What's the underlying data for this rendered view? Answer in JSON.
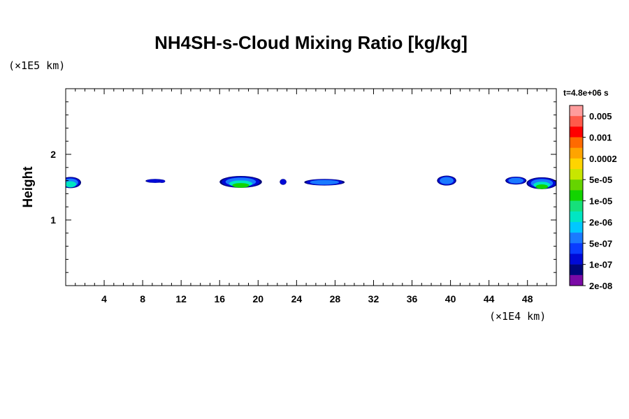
{
  "chart_data": {
    "type": "contour",
    "title": "NH4SH-s-Cloud Mixing Ratio [kg/kg]",
    "ylabel": "Height",
    "xlabel": "",
    "x_unit_label": "(×1E4 km)",
    "y_unit_label": "(×1E5 km)",
    "time_label": "t=4.8e+06 s",
    "xlim": [
      0,
      51
    ],
    "ylim": [
      0,
      3
    ],
    "x_ticks": [
      4,
      8,
      12,
      16,
      20,
      24,
      28,
      32,
      36,
      40,
      44,
      48
    ],
    "y_ticks": [
      1,
      2
    ],
    "x_minor_step": 1,
    "y_minor_step": 0.2,
    "colorbar": {
      "labels": [
        "0.005",
        "0.001",
        "0.0002",
        "5e-05",
        "1e-05",
        "2e-06",
        "5e-07",
        "1e-07",
        "2e-08"
      ],
      "colors": [
        "#ff9c9c",
        "#ff5a4a",
        "#ff0000",
        "#ff6a00",
        "#ffa400",
        "#ffd400",
        "#c8e600",
        "#66d400",
        "#12d400",
        "#16e07a",
        "#00e6c2",
        "#00c8ff",
        "#1a7aff",
        "#0a3cff",
        "#000ad6",
        "#00067a",
        "#7a0aa6"
      ]
    },
    "cloud_patches": [
      {
        "x_center": 0.5,
        "y_center": 1.57,
        "x_halfwidth": 1.1,
        "y_halfheight": 0.085,
        "max_level": "2e-06"
      },
      {
        "x_center": 9.3,
        "y_center": 1.595,
        "x_halfwidth": 1.0,
        "y_halfheight": 0.03,
        "max_level": "1e-07"
      },
      {
        "x_center": 10.0,
        "y_center": 1.59,
        "x_halfwidth": 0.35,
        "y_halfheight": 0.025,
        "max_level": "1e-07"
      },
      {
        "x_center": 18.2,
        "y_center": 1.58,
        "x_halfwidth": 2.2,
        "y_halfheight": 0.09,
        "max_level": "1e-05"
      },
      {
        "x_center": 22.6,
        "y_center": 1.58,
        "x_halfwidth": 0.35,
        "y_halfheight": 0.045,
        "max_level": "1e-07"
      },
      {
        "x_center": 26.9,
        "y_center": 1.575,
        "x_halfwidth": 2.1,
        "y_halfheight": 0.05,
        "max_level": "5e-07"
      },
      {
        "x_center": 39.6,
        "y_center": 1.6,
        "x_halfwidth": 1.0,
        "y_halfheight": 0.075,
        "max_level": "5e-07"
      },
      {
        "x_center": 46.8,
        "y_center": 1.6,
        "x_halfwidth": 1.1,
        "y_halfheight": 0.06,
        "max_level": "5e-07"
      },
      {
        "x_center": 49.5,
        "y_center": 1.56,
        "x_halfwidth": 1.6,
        "y_halfheight": 0.09,
        "max_level": "1e-05"
      }
    ]
  }
}
